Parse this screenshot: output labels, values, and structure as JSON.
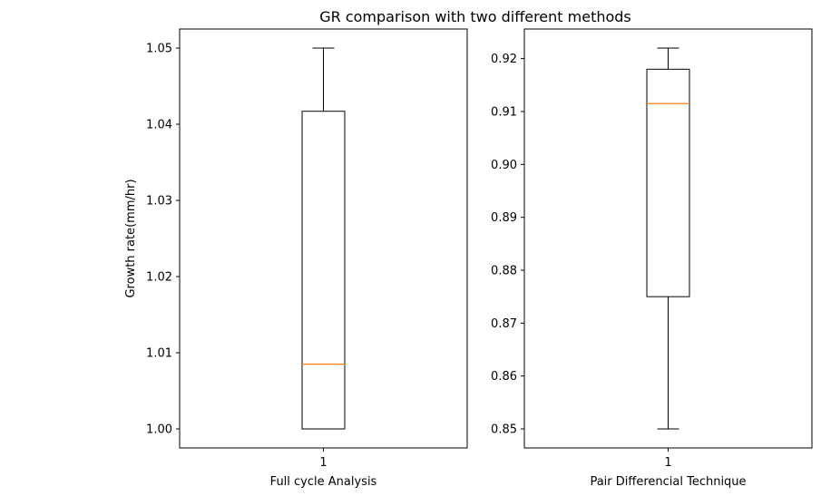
{
  "figure": {
    "suptitle": "GR comparison with two different methods"
  },
  "chart_data": [
    {
      "type": "box",
      "xlabel": "Full cycle Analysis",
      "ylabel": "Growth rate(mm/hr)",
      "categories": [
        "1"
      ],
      "yticks": [
        "1.00",
        "1.01",
        "1.02",
        "1.03",
        "1.04",
        "1.05"
      ],
      "ylim": [
        0.9975,
        1.0525
      ],
      "boxes": [
        {
          "category": "1",
          "whisker_low": 1.0,
          "q1": 1.0,
          "median": 1.0085,
          "q3": 1.0417,
          "whisker_high": 1.05
        }
      ],
      "grid": false
    },
    {
      "type": "box",
      "xlabel": "Pair Differencial Technique",
      "ylabel": "",
      "categories": [
        "1"
      ],
      "yticks": [
        "0.85",
        "0.86",
        "0.87",
        "0.88",
        "0.89",
        "0.90",
        "0.91",
        "0.92"
      ],
      "ylim": [
        0.8464,
        0.9256
      ],
      "boxes": [
        {
          "category": "1",
          "whisker_low": 0.85,
          "q1": 0.875,
          "median": 0.9115,
          "q3": 0.918,
          "whisker_high": 0.922
        }
      ],
      "grid": false
    }
  ],
  "colors": {
    "median": "#ff7f0e",
    "box_edge": "#000000",
    "axes_edge": "#000000",
    "background": "#ffffff"
  }
}
